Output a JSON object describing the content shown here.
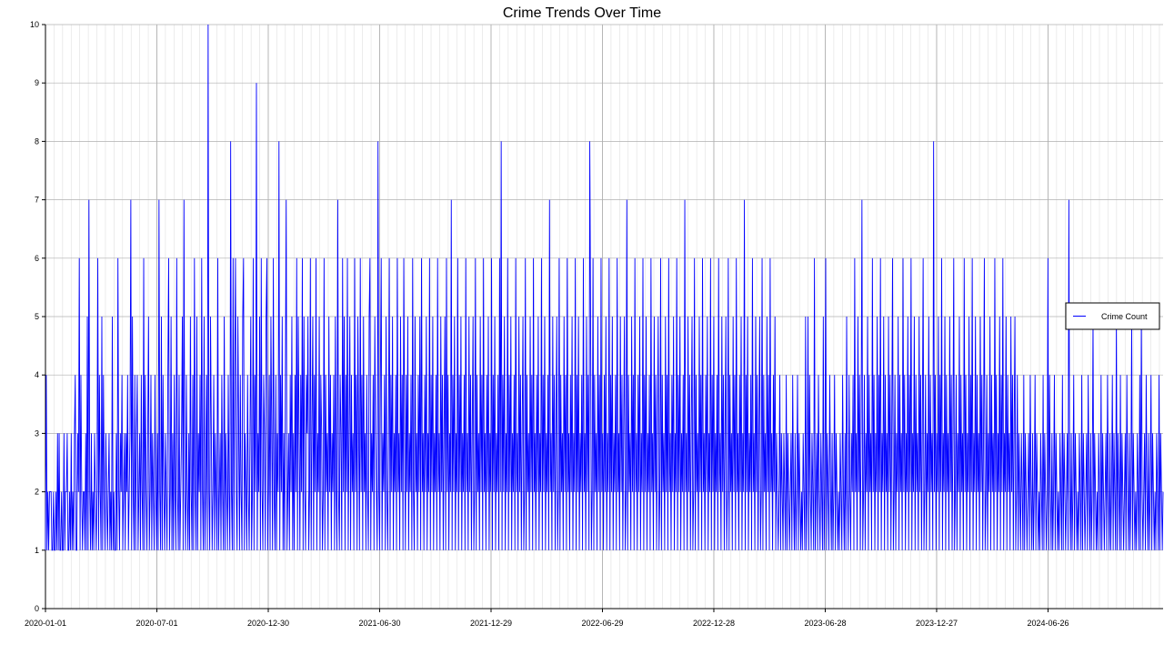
{
  "chart_data": {
    "type": "line",
    "title": "Crime Trends Over Time",
    "xlabel": "",
    "ylabel": "",
    "x_range": [
      "2020-01-01",
      "2024-12-31"
    ],
    "ylim": [
      0,
      10
    ],
    "y_ticks": [
      0,
      1,
      2,
      3,
      4,
      5,
      6,
      7,
      8,
      9,
      10
    ],
    "x_tick_labels": [
      "2020-01-01",
      "2020-07-01",
      "2020-12-30",
      "2021-06-30",
      "2021-12-29",
      "2022-06-29",
      "2022-12-28",
      "2023-06-28",
      "2023-12-27",
      "2024-06-26"
    ],
    "grid": true,
    "legend_position": "right",
    "colors": {
      "line": "#0000ff",
      "grid": "#b0b0b0",
      "axis": "#000000"
    },
    "series": [
      {
        "name": "Crime Count",
        "x_start": "2020-01-01",
        "x_step": "1 day",
        "values": [
          1,
          4,
          1,
          2,
          1,
          2,
          2,
          2,
          1,
          1,
          2,
          1,
          1,
          2,
          1,
          3,
          1,
          3,
          1,
          1,
          2,
          1,
          1,
          3,
          1,
          2,
          2,
          3,
          1,
          1,
          2,
          1,
          3,
          1,
          2,
          1,
          3,
          4,
          1,
          1,
          3,
          2,
          6,
          1,
          4,
          2,
          1,
          2,
          2,
          1,
          3,
          1,
          5,
          1,
          7,
          2,
          1,
          3,
          1,
          2,
          1,
          3,
          2,
          1,
          2,
          6,
          1,
          4,
          2,
          1,
          5,
          1,
          4,
          2,
          1,
          3,
          2,
          1,
          2,
          3,
          1,
          2,
          1,
          5,
          1,
          2,
          1,
          1,
          3,
          1,
          6,
          2,
          1,
          3,
          2,
          4,
          1,
          2,
          3,
          1,
          3,
          2,
          4,
          1,
          2,
          3,
          7,
          1,
          5,
          2,
          1,
          4,
          1,
          3,
          4,
          1,
          2,
          3,
          1,
          4,
          2,
          1,
          6,
          1,
          4,
          2,
          1,
          3,
          5,
          1,
          2,
          4,
          1,
          3,
          2,
          1,
          4,
          2,
          1,
          3,
          1,
          7,
          2,
          1,
          5,
          1,
          4,
          2,
          1,
          3,
          2,
          1,
          4,
          6,
          1,
          2,
          5,
          1,
          3,
          1,
          4,
          2,
          1,
          6,
          2,
          1,
          4,
          1,
          2,
          3,
          5,
          1,
          7,
          2,
          1,
          4,
          2,
          1,
          3,
          1,
          5,
          2,
          1,
          4,
          1,
          6,
          2,
          1,
          5,
          1,
          3,
          2,
          4,
          1,
          6,
          2,
          1,
          5,
          1,
          2,
          4,
          1,
          10,
          2,
          1,
          5,
          3,
          1,
          2,
          4,
          1,
          3,
          2,
          1,
          6,
          1,
          2,
          3,
          1,
          4,
          2,
          1,
          5,
          1,
          3,
          2,
          1,
          4,
          2,
          1,
          8,
          2,
          1,
          6,
          1,
          4,
          6,
          2,
          1,
          5,
          3,
          1,
          4,
          2,
          1,
          5,
          6,
          1,
          3,
          2,
          1,
          4,
          2,
          1,
          3,
          5,
          1,
          2,
          6,
          1,
          4,
          2,
          9,
          1,
          3,
          2,
          5,
          1,
          6,
          2,
          1,
          4,
          3,
          1,
          5,
          6,
          1,
          2,
          4,
          1,
          5,
          3,
          1,
          6,
          2,
          1,
          4,
          1,
          3,
          2,
          8,
          1,
          4,
          2,
          5,
          1,
          3,
          1,
          4,
          7,
          1,
          2,
          3,
          1,
          4,
          2,
          5,
          1,
          3,
          1,
          4,
          2,
          6,
          1,
          5,
          3,
          1,
          4,
          2,
          6,
          1,
          5,
          2,
          1,
          4,
          3,
          5,
          1,
          2,
          6,
          1,
          3,
          5,
          1,
          4,
          2,
          6,
          1,
          3,
          2,
          5,
          1,
          4,
          3,
          1,
          2,
          6,
          1,
          4,
          2,
          3,
          1,
          5,
          2,
          4,
          1,
          3,
          2,
          4,
          1,
          5,
          2,
          1,
          7,
          2,
          1,
          4,
          3,
          1,
          6,
          2,
          5,
          1,
          4,
          2,
          6,
          1,
          3,
          5,
          1,
          4,
          2,
          3,
          1,
          6,
          2,
          4,
          1,
          5,
          3,
          1,
          6,
          2,
          4,
          1,
          5,
          2,
          3,
          1,
          4,
          2,
          1,
          5,
          6,
          1,
          3,
          2,
          4,
          1,
          5,
          3,
          2,
          1,
          8,
          2,
          1,
          4,
          6,
          1,
          3,
          2,
          4,
          1,
          5,
          2,
          1,
          3,
          6,
          1,
          4,
          2,
          5,
          1,
          3,
          2,
          4,
          1,
          6,
          2,
          3,
          1,
          5,
          2,
          4,
          1,
          6,
          3,
          1,
          4,
          2,
          5,
          1,
          3,
          2,
          4,
          1,
          6,
          2,
          1,
          5,
          2,
          3,
          1,
          4,
          2,
          5,
          1,
          6,
          2,
          3,
          1,
          4,
          2,
          5,
          1,
          3,
          2,
          6,
          1,
          4,
          2,
          5,
          1,
          3,
          2,
          4,
          1,
          6,
          2,
          3,
          1,
          5,
          2,
          4,
          1,
          3,
          5,
          1,
          6,
          2,
          4,
          1,
          3,
          2,
          7,
          1,
          4,
          2,
          5,
          1,
          3,
          2,
          6,
          1,
          4,
          2,
          5,
          1,
          3,
          2,
          4,
          1,
          6,
          2,
          3,
          1,
          5,
          2,
          4,
          1,
          3,
          5,
          1,
          2,
          6,
          1,
          4,
          2,
          3,
          1,
          5,
          2,
          4,
          1,
          6,
          2,
          3,
          1,
          4,
          2,
          5,
          1,
          3,
          2,
          6,
          1,
          4,
          2,
          5,
          1,
          3,
          2,
          4,
          1,
          6,
          2,
          8,
          1,
          4,
          2,
          5,
          1,
          3,
          2,
          6,
          1,
          4,
          2,
          5,
          1,
          3,
          2,
          4,
          1,
          6,
          2,
          3,
          1,
          5,
          2,
          4,
          1,
          3,
          5,
          1,
          2,
          6,
          1,
          4,
          2,
          3,
          1,
          5,
          2,
          4,
          1,
          6,
          2,
          3,
          1,
          4,
          2,
          5,
          1,
          3,
          2,
          6,
          1,
          4,
          2,
          5,
          1,
          3,
          2,
          4,
          1,
          7,
          2,
          3,
          1,
          5,
          2,
          4,
          1,
          3,
          5,
          1,
          2,
          6,
          1,
          4,
          2,
          3,
          1,
          5,
          2,
          4,
          1,
          6,
          2,
          3,
          1,
          4,
          2,
          5,
          1,
          3,
          2,
          6,
          1,
          4,
          2,
          5,
          1,
          3,
          2,
          4,
          1,
          6,
          2,
          3,
          1,
          5,
          2,
          4,
          1,
          8,
          5,
          1,
          2,
          6,
          1,
          4,
          2,
          3,
          1,
          5,
          2,
          4,
          1,
          6,
          2,
          3,
          1,
          4,
          2,
          5,
          1,
          3,
          2,
          6,
          1,
          4,
          2,
          5,
          1,
          3,
          2,
          4,
          1,
          6,
          2,
          3,
          1,
          5,
          2,
          4,
          1,
          3,
          5,
          1,
          2,
          7,
          1,
          4,
          2,
          3,
          1,
          5,
          2,
          4,
          1,
          6,
          2,
          3,
          1,
          4,
          2,
          5,
          1,
          3,
          2,
          6,
          1,
          4,
          2,
          5,
          1,
          3,
          2,
          4,
          1,
          6,
          2,
          3,
          1,
          5,
          2,
          4,
          1,
          3,
          5,
          1,
          2,
          6,
          1,
          4,
          2,
          3,
          1,
          5,
          2,
          4,
          1,
          6,
          2,
          3,
          1,
          4,
          2,
          5,
          1,
          3,
          2,
          6,
          1,
          4,
          2,
          5,
          1,
          3,
          2,
          4,
          1,
          7,
          2,
          3,
          1,
          5,
          2,
          4,
          1,
          3,
          5,
          1,
          2,
          6,
          1,
          4,
          2,
          3,
          1,
          5,
          2,
          4,
          1,
          6,
          2,
          3,
          1,
          4,
          2,
          5,
          1,
          3,
          2,
          6,
          1,
          4,
          2,
          5,
          1,
          3,
          2,
          4,
          1,
          6,
          2,
          3,
          1,
          5,
          2,
          4,
          1,
          3,
          5,
          1,
          2,
          6,
          1,
          4,
          2,
          3,
          1,
          5,
          2,
          4,
          1,
          6,
          2,
          3,
          1,
          4,
          2,
          5,
          1,
          3,
          2,
          7,
          1,
          4,
          2,
          5,
          1,
          3,
          2,
          4,
          1,
          6,
          2,
          3,
          1,
          5,
          2,
          4,
          1,
          3,
          5,
          1,
          2,
          6,
          1,
          4,
          2,
          3,
          1,
          5,
          2,
          4,
          1,
          6,
          2,
          3,
          1,
          4,
          2,
          5,
          1,
          3,
          2,
          1,
          2,
          4,
          1,
          3,
          2,
          1,
          3,
          2,
          1,
          4,
          1,
          3,
          2,
          1,
          2,
          3,
          1,
          4,
          2,
          1,
          3,
          1,
          2,
          4,
          1,
          3,
          2,
          1,
          2,
          1,
          3,
          2,
          1,
          5,
          1,
          2,
          5,
          1,
          4,
          2,
          1,
          3,
          2,
          1,
          6,
          1,
          2,
          3,
          1,
          4,
          2,
          1,
          3,
          2,
          1,
          5,
          1,
          2,
          6,
          1,
          3,
          2,
          1,
          4,
          2,
          1,
          3,
          1,
          2,
          4,
          1,
          3,
          2,
          1,
          2,
          1,
          3,
          2,
          1,
          4,
          2,
          1,
          3,
          1,
          5,
          2,
          1,
          4,
          2,
          1,
          3,
          2,
          4,
          1,
          6,
          2,
          3,
          1,
          5,
          2,
          4,
          1,
          3,
          7,
          1,
          2,
          4,
          1,
          3,
          2,
          5,
          1,
          4,
          2,
          3,
          1,
          6,
          2,
          4,
          1,
          3,
          2,
          5,
          1,
          4,
          2,
          6,
          1,
          3,
          2,
          5,
          1,
          4,
          2,
          3,
          1,
          5,
          2,
          4,
          1,
          3,
          6,
          1,
          2,
          4,
          1,
          3,
          2,
          5,
          1,
          4,
          2,
          3,
          1,
          6,
          2,
          4,
          1,
          3,
          2,
          5,
          1,
          4,
          2,
          6,
          1,
          3,
          2,
          5,
          1,
          4,
          2,
          3,
          1,
          5,
          2,
          4,
          1,
          3,
          6,
          1,
          2,
          4,
          1,
          3,
          2,
          5,
          1,
          4,
          2,
          3,
          1,
          8,
          2,
          4,
          1,
          3,
          2,
          5,
          1,
          4,
          2,
          6,
          1,
          3,
          2,
          5,
          1,
          4,
          2,
          3,
          1,
          5,
          2,
          4,
          1,
          3,
          6,
          1,
          2,
          4,
          1,
          3,
          2,
          5,
          1,
          4,
          2,
          3,
          1,
          6,
          2,
          4,
          1,
          3,
          2,
          5,
          1,
          4,
          2,
          6,
          1,
          3,
          2,
          5,
          1,
          4,
          2,
          3,
          1,
          5,
          2,
          4,
          1,
          3,
          6,
          1,
          2,
          4,
          1,
          3,
          2,
          5,
          1,
          4,
          2,
          3,
          1,
          6,
          2,
          4,
          1,
          3,
          2,
          5,
          1,
          4,
          2,
          6,
          1,
          3,
          2,
          5,
          1,
          4,
          2,
          3,
          1,
          5,
          2,
          4,
          1,
          3,
          5,
          1,
          2,
          4,
          1,
          3,
          2,
          1,
          3,
          2,
          1,
          4,
          1,
          3,
          2,
          1,
          2,
          3,
          1,
          4,
          2,
          1,
          3,
          1,
          2,
          4,
          1,
          3,
          2,
          1,
          2,
          1,
          3,
          2,
          1,
          4,
          1,
          3,
          2,
          1,
          2,
          6,
          1,
          4,
          2,
          1,
          3,
          1,
          2,
          4,
          1,
          3,
          2,
          1,
          2,
          1,
          3,
          2,
          1,
          4,
          1,
          3,
          2,
          1,
          2,
          3,
          1,
          7,
          2,
          1,
          3,
          1,
          2,
          4,
          1,
          3,
          2,
          1,
          2,
          1,
          3,
          2,
          1,
          4,
          1,
          3,
          2,
          1,
          2,
          3,
          1,
          4,
          2,
          1,
          3,
          1,
          2,
          5,
          1,
          3,
          2,
          1,
          2,
          1,
          3,
          2,
          1,
          4,
          1,
          3,
          2,
          1,
          2,
          3,
          1,
          4,
          2,
          1,
          3,
          1,
          2,
          4,
          1,
          3,
          2,
          1,
          5,
          1,
          3,
          2,
          1,
          4,
          1,
          3,
          2,
          1,
          2,
          3,
          1,
          4,
          2,
          1,
          3,
          1,
          2,
          5,
          1,
          3,
          2,
          1,
          2,
          1,
          3,
          2,
          1,
          4,
          1,
          5,
          2,
          1,
          2,
          3,
          1,
          4,
          2,
          1,
          3,
          1,
          2,
          4,
          1,
          3,
          2,
          1,
          2,
          1,
          3,
          2,
          1,
          4,
          1,
          3,
          2,
          1,
          2
        ]
      }
    ]
  }
}
